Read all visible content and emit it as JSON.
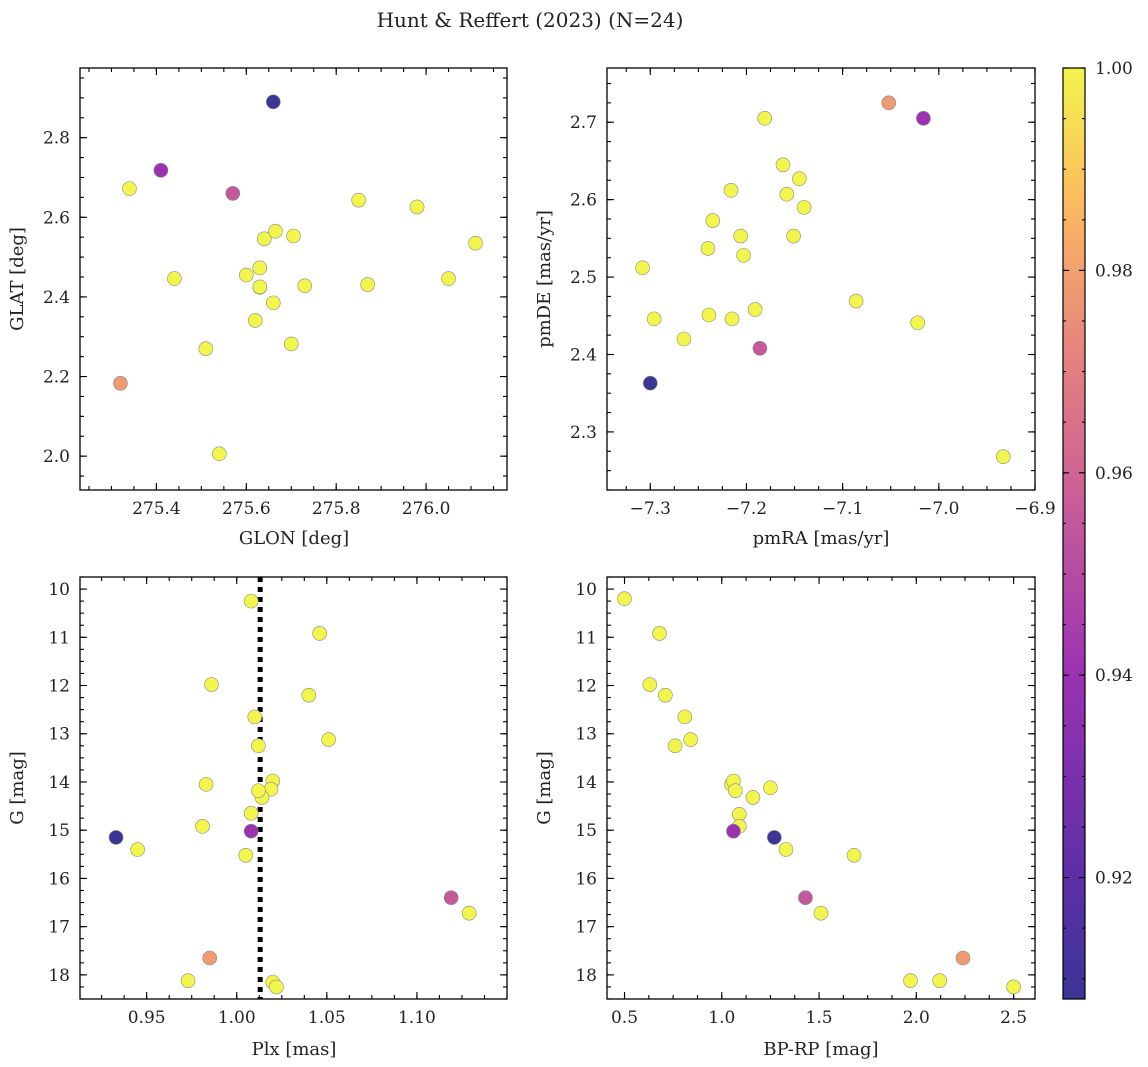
{
  "title": "Hunt & Reffert (2023) (N=24)",
  "colorbar": {
    "min": 0.908,
    "max": 1.0,
    "ticks": [
      0.92,
      0.94,
      0.96,
      0.98,
      1.0
    ],
    "tick_labels": [
      "0.92",
      "0.94",
      "0.96",
      "0.98",
      "1.00"
    ],
    "colormap": "plasma"
  },
  "chart_data": [
    {
      "type": "scatter",
      "name": "sky",
      "xlabel": "GLON [deg]",
      "ylabel": "GLAT [deg]",
      "xlim": [
        275.23,
        276.18
      ],
      "ylim": [
        1.915,
        2.975
      ],
      "invert_y": false,
      "xticks": [
        275.4,
        275.6,
        275.8,
        276.0
      ],
      "xtick_labels": [
        "275.4",
        "275.6",
        "275.8",
        "276.0"
      ],
      "xminor": 0.05,
      "yticks": [
        2.0,
        2.2,
        2.4,
        2.6,
        2.8
      ],
      "ytick_labels": [
        "2.0",
        "2.2",
        "2.4",
        "2.6",
        "2.8"
      ],
      "yminor": 0.05,
      "x": [
        275.66,
        275.41,
        275.34,
        275.57,
        275.32,
        275.44,
        275.54,
        275.51,
        275.6,
        275.62,
        275.63,
        275.63,
        275.64,
        275.66,
        275.665,
        275.7,
        275.705,
        275.73,
        275.85,
        275.87,
        275.98,
        276.05,
        276.11,
        275.63
      ],
      "y": [
        2.89,
        2.718,
        2.672,
        2.66,
        2.183,
        2.446,
        2.006,
        2.27,
        2.455,
        2.341,
        2.473,
        2.424,
        2.546,
        2.385,
        2.565,
        2.282,
        2.553,
        2.428,
        2.643,
        2.431,
        2.626,
        2.446,
        2.535,
        2.425
      ],
      "prob": [
        0.908,
        0.94,
        1.0,
        0.955,
        0.978,
        1.0,
        1.0,
        1.0,
        1.0,
        1.0,
        1.0,
        1.0,
        1.0,
        1.0,
        1.0,
        1.0,
        1.0,
        1.0,
        1.0,
        1.0,
        1.0,
        1.0,
        1.0,
        1.0
      ]
    },
    {
      "type": "scatter",
      "name": "proper-motion",
      "xlabel": "pmRA [mas/yr]",
      "ylabel": "pmDE [mas/yr]",
      "xlim": [
        -7.345,
        -6.9
      ],
      "ylim": [
        2.225,
        2.77
      ],
      "invert_y": false,
      "xticks": [
        -7.3,
        -7.2,
        -7.1,
        -7.0,
        -6.9
      ],
      "xtick_labels": [
        "−7.3",
        "−7.2",
        "−7.1",
        "−7.0",
        "−6.9"
      ],
      "xminor": 0.025,
      "yticks": [
        2.3,
        2.4,
        2.5,
        2.6,
        2.7
      ],
      "ytick_labels": [
        "2.3",
        "2.4",
        "2.5",
        "2.6",
        "2.7"
      ],
      "yminor": 0.025,
      "x": [
        -7.3,
        -7.186,
        -7.052,
        -7.016,
        -6.933,
        -7.308,
        -7.296,
        -7.265,
        -7.24,
        -7.239,
        -7.235,
        -7.216,
        -7.215,
        -7.206,
        -7.203,
        -7.191,
        -7.181,
        -7.162,
        -7.158,
        -7.151,
        -7.145,
        -7.14,
        -7.086,
        -7.022
      ],
      "y": [
        2.363,
        2.408,
        2.725,
        2.705,
        2.268,
        2.512,
        2.446,
        2.42,
        2.537,
        2.451,
        2.573,
        2.612,
        2.446,
        2.553,
        2.528,
        2.458,
        2.705,
        2.645,
        2.607,
        2.553,
        2.627,
        2.59,
        2.469,
        2.441
      ],
      "prob": [
        0.908,
        0.955,
        0.978,
        0.94,
        1.0,
        1.0,
        1.0,
        1.0,
        1.0,
        1.0,
        1.0,
        1.0,
        1.0,
        1.0,
        1.0,
        1.0,
        1.0,
        1.0,
        1.0,
        1.0,
        1.0,
        1.0,
        1.0,
        1.0
      ]
    },
    {
      "type": "scatter",
      "name": "parallax-magnitude",
      "xlabel": "Plx [mas]",
      "ylabel": "G [mag]",
      "xlim": [
        0.913,
        1.15
      ],
      "ylim": [
        9.75,
        18.5
      ],
      "invert_y": true,
      "reference_x": 1.013,
      "xticks": [
        0.95,
        1.0,
        1.05,
        1.1
      ],
      "xtick_labels": [
        "0.95",
        "1.00",
        "1.05",
        "1.10"
      ],
      "xminor": 0.0125,
      "yticks": [
        10,
        11,
        12,
        13,
        14,
        15,
        16,
        17,
        18
      ],
      "ytick_labels": [
        "10",
        "11",
        "12",
        "13",
        "14",
        "15",
        "16",
        "17",
        "18"
      ],
      "yminor": 0.25,
      "x": [
        0.933,
        1.008,
        1.119,
        0.985,
        1.008,
        1.046,
        0.986,
        1.04,
        1.01,
        1.051,
        1.012,
        0.983,
        1.02,
        1.019,
        1.014,
        1.008,
        0.981,
        1.005,
        0.945,
        1.129,
        0.973,
        1.02,
        1.022,
        1.012
      ],
      "y": [
        15.15,
        15.02,
        16.4,
        17.65,
        10.25,
        10.92,
        11.98,
        12.2,
        12.65,
        13.12,
        13.25,
        14.05,
        13.98,
        14.15,
        14.32,
        14.65,
        14.92,
        15.52,
        15.4,
        16.72,
        18.12,
        18.15,
        18.25,
        14.18
      ],
      "prob": [
        0.908,
        0.94,
        0.955,
        0.978,
        1.0,
        1.0,
        1.0,
        1.0,
        1.0,
        1.0,
        1.0,
        1.0,
        1.0,
        1.0,
        1.0,
        1.0,
        1.0,
        1.0,
        1.0,
        1.0,
        1.0,
        1.0,
        1.0,
        1.0
      ]
    },
    {
      "type": "scatter",
      "name": "color-magnitude",
      "xlabel": "BP-RP [mag]",
      "ylabel": "G [mag]",
      "xlim": [
        0.41,
        2.61
      ],
      "ylim": [
        9.75,
        18.5
      ],
      "invert_y": true,
      "xticks": [
        0.5,
        1.0,
        1.5,
        2.0,
        2.5
      ],
      "xtick_labels": [
        "0.5",
        "1.0",
        "1.5",
        "2.0",
        "2.5"
      ],
      "xminor": 0.125,
      "yticks": [
        10,
        11,
        12,
        13,
        14,
        15,
        16,
        17,
        18
      ],
      "ytick_labels": [
        "10",
        "11",
        "12",
        "13",
        "14",
        "15",
        "16",
        "17",
        "18"
      ],
      "yminor": 0.25,
      "x": [
        1.27,
        1.06,
        1.43,
        2.24,
        0.5,
        0.68,
        0.63,
        0.71,
        0.81,
        0.84,
        0.76,
        1.05,
        1.06,
        1.07,
        1.16,
        1.09,
        1.09,
        1.25,
        1.33,
        1.68,
        1.51,
        1.97,
        2.12,
        2.5
      ],
      "y": [
        15.15,
        15.02,
        16.4,
        17.65,
        10.2,
        10.92,
        11.98,
        12.2,
        12.65,
        13.12,
        13.25,
        14.05,
        13.98,
        14.18,
        14.32,
        14.67,
        14.92,
        14.12,
        15.4,
        15.52,
        16.72,
        18.12,
        18.12,
        18.25
      ],
      "prob": [
        0.908,
        0.94,
        0.955,
        0.978,
        1.0,
        1.0,
        1.0,
        1.0,
        1.0,
        1.0,
        1.0,
        1.0,
        1.0,
        1.0,
        1.0,
        1.0,
        1.0,
        1.0,
        1.0,
        1.0,
        1.0,
        1.0,
        1.0,
        1.0
      ]
    }
  ]
}
